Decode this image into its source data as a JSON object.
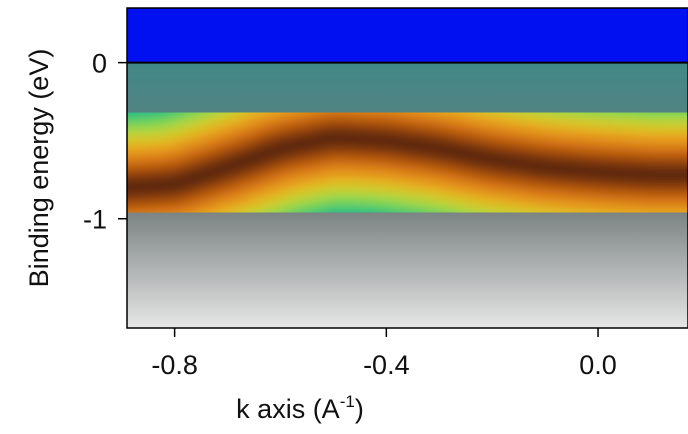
{
  "chart_data": {
    "type": "heatmap",
    "xlabel": {
      "text": "k axis (A",
      "superscript": "-1",
      "suffix": ")"
    },
    "ylabel": "Binding energy (eV)",
    "xlim": [
      -0.89,
      0.17
    ],
    "ylim": [
      -1.7,
      0.35
    ],
    "xticks": [
      -0.8,
      -0.4,
      {
        "value": 0,
        "label": "0.0"
      }
    ],
    "yticks": [
      0,
      -1
    ],
    "fermi_level": 0,
    "band": {
      "x": [
        -0.89,
        -0.8,
        -0.7,
        -0.6,
        -0.5,
        -0.4,
        -0.3,
        -0.2,
        -0.1,
        0,
        0.1,
        0.17
      ],
      "values": [
        -0.8,
        -0.78,
        -0.67,
        -0.55,
        -0.48,
        -0.5,
        -0.55,
        -0.62,
        -0.67,
        -0.7,
        -0.72,
        -0.72
      ]
    }
  }
}
